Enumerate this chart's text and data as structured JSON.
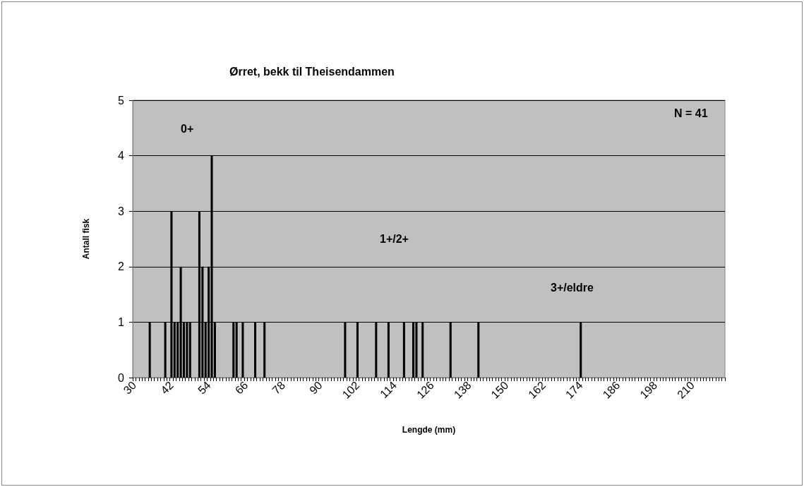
{
  "chart_data": {
    "type": "bar",
    "title": "Ørret, bekk til Theisendammen",
    "xlabel": "Lengde (mm)",
    "ylabel": "Antall fisk",
    "annotations": [
      "N = 41",
      "0+",
      "1+/2+",
      "3+/eldre"
    ],
    "categories": [
      "30",
      null,
      null,
      null,
      null,
      null,
      null,
      null,
      null,
      null,
      null,
      null,
      "42",
      null,
      null,
      null,
      null,
      null,
      null,
      null,
      null,
      null,
      null,
      null,
      "54",
      null,
      null,
      null,
      null,
      null,
      null,
      null,
      null,
      null,
      null,
      null,
      "66",
      null,
      null,
      null,
      null,
      null,
      null,
      null,
      null,
      null,
      null,
      null,
      "78",
      null,
      null,
      null,
      null,
      null,
      null,
      null,
      null,
      null,
      null,
      null,
      "90",
      null,
      null,
      null,
      null,
      null,
      null,
      null,
      null,
      null,
      null,
      null,
      "102",
      null,
      null,
      null,
      null,
      null,
      null,
      null,
      null,
      null,
      null,
      null,
      "114",
      null,
      null,
      null,
      null,
      null,
      null,
      null,
      null,
      null,
      null,
      null,
      "126",
      null,
      null,
      null,
      null,
      null,
      null,
      null,
      null,
      null,
      null,
      null,
      "138",
      null,
      null,
      null,
      null,
      null,
      null,
      null,
      null,
      null,
      null,
      null,
      "150",
      null,
      null,
      null,
      null,
      null,
      null,
      null,
      null,
      null,
      null,
      null,
      "162",
      null,
      null,
      null,
      null,
      null,
      null,
      null,
      null,
      null,
      null,
      null,
      "174",
      null,
      null,
      null,
      null,
      null,
      null,
      null,
      null,
      null,
      null,
      null,
      "186",
      null,
      null,
      null,
      null,
      null,
      null,
      null,
      null,
      null,
      null,
      null,
      "198",
      null,
      null,
      null,
      null,
      null,
      null,
      null,
      null,
      null,
      null,
      null,
      "210",
      null,
      null,
      null,
      null,
      null,
      null,
      null,
      null,
      null,
      null
    ],
    "values": [
      0,
      0,
      0,
      0,
      0,
      1,
      0,
      0,
      0,
      0,
      1,
      0,
      3,
      1,
      1,
      2,
      1,
      1,
      1,
      0,
      0,
      3,
      2,
      1,
      2,
      4,
      1,
      0,
      0,
      0,
      0,
      0,
      1,
      1,
      0,
      1,
      0,
      0,
      0,
      1,
      0,
      0,
      1,
      0,
      0,
      0,
      0,
      0,
      0,
      0,
      0,
      0,
      0,
      0,
      0,
      0,
      0,
      0,
      0,
      0,
      0,
      0,
      0,
      0,
      0,
      0,
      0,
      0,
      1,
      0,
      0,
      0,
      1,
      0,
      0,
      0,
      0,
      0,
      1,
      0,
      0,
      0,
      1,
      0,
      0,
      0,
      0,
      1,
      0,
      0,
      1,
      1,
      0,
      1,
      0,
      0,
      0,
      0,
      0,
      0,
      0,
      0,
      1,
      0,
      0,
      0,
      0,
      0,
      0,
      0,
      0,
      1,
      0,
      0,
      0,
      0,
      0,
      0,
      0,
      0,
      0,
      0,
      0,
      0,
      0,
      0,
      0,
      0,
      0,
      0,
      0,
      0,
      0,
      0,
      0,
      0,
      0,
      0,
      0,
      0,
      0,
      0,
      0,
      0,
      1,
      0,
      0,
      0,
      0,
      0,
      0,
      0,
      0,
      0,
      0,
      0,
      0,
      0,
      0,
      0,
      0,
      0,
      0,
      0,
      0,
      0,
      0,
      0,
      0,
      0,
      0,
      0,
      0,
      0,
      0,
      0,
      0,
      0,
      0,
      0,
      0,
      0,
      0,
      0,
      0,
      0,
      0,
      0,
      0,
      0,
      0
    ],
    "color": "#000000",
    "ylim": [
      0,
      5
    ],
    "yticks": [
      0,
      1,
      2,
      3,
      4,
      5
    ],
    "grid": "y"
  }
}
